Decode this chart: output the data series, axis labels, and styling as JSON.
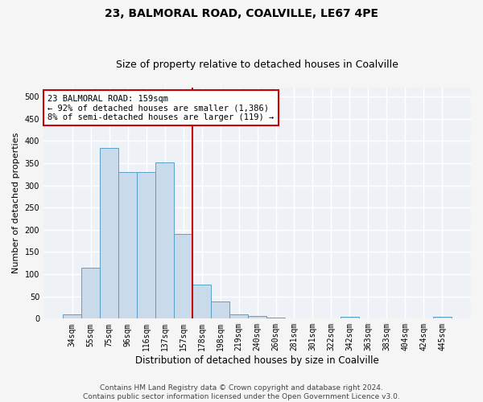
{
  "title": "23, BALMORAL ROAD, COALVILLE, LE67 4PE",
  "subtitle": "Size of property relative to detached houses in Coalville",
  "xlabel": "Distribution of detached houses by size in Coalville",
  "ylabel": "Number of detached properties",
  "bar_color": "#c9daea",
  "bar_edge_color": "#5a9fc8",
  "vline_color": "#cc0000",
  "vline_x_index": 6,
  "annotation_line1": "23 BALMORAL ROAD: 159sqm",
  "annotation_line2": "← 92% of detached houses are smaller (1,386)",
  "annotation_line3": "8% of semi-detached houses are larger (119) →",
  "annotation_box_color": "#cc0000",
  "categories": [
    "34sqm",
    "55sqm",
    "75sqm",
    "96sqm",
    "116sqm",
    "137sqm",
    "157sqm",
    "178sqm",
    "198sqm",
    "219sqm",
    "240sqm",
    "260sqm",
    "281sqm",
    "301sqm",
    "322sqm",
    "342sqm",
    "363sqm",
    "383sqm",
    "404sqm",
    "424sqm",
    "445sqm"
  ],
  "values": [
    10,
    115,
    385,
    330,
    330,
    352,
    190,
    76,
    38,
    10,
    6,
    3,
    0,
    0,
    0,
    5,
    0,
    0,
    0,
    0,
    4
  ],
  "ylim": [
    0,
    520
  ],
  "yticks": [
    0,
    50,
    100,
    150,
    200,
    250,
    300,
    350,
    400,
    450,
    500
  ],
  "footer_line1": "Contains HM Land Registry data © Crown copyright and database right 2024.",
  "footer_line2": "Contains public sector information licensed under the Open Government Licence v3.0.",
  "bg_color": "#eef2f7",
  "fig_bg_color": "#f5f5f5",
  "grid_color": "#ffffff",
  "title_fontsize": 10,
  "subtitle_fontsize": 9,
  "tick_fontsize": 7,
  "ylabel_fontsize": 8,
  "xlabel_fontsize": 8.5,
  "footer_fontsize": 6.5,
  "annotation_fontsize": 7.5
}
